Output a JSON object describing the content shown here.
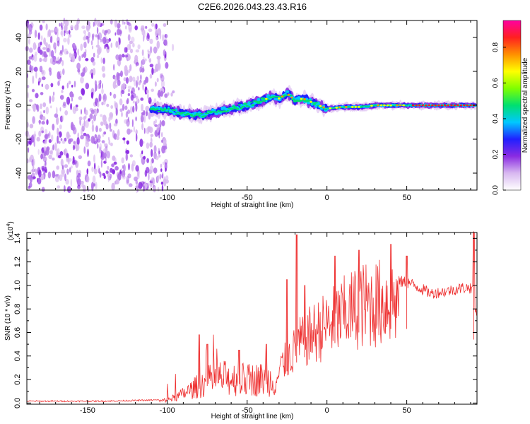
{
  "title": "C2E6.2026.043.23.43.R16",
  "chart_data": [
    {
      "type": "heatmap",
      "name": "spectrogram",
      "xlabel": "Height of straight line (km)",
      "ylabel": "Frequency (Hz)",
      "xlim": [
        -188,
        94
      ],
      "ylim": [
        -50,
        50
      ],
      "xticks": [
        -150,
        -100,
        -50,
        0,
        50
      ],
      "xtick_labels": [
        "-150",
        "-100",
        "-50",
        "0",
        "50"
      ],
      "yticks": [
        -40,
        -20,
        0,
        20,
        40
      ],
      "ytick_labels": [
        "-40",
        "-20",
        "0",
        "20",
        "40"
      ],
      "noise_region": [
        -188,
        -100
      ],
      "ridge": {
        "x": [
          -110,
          -100,
          -90,
          -80,
          -70,
          -60,
          -50,
          -40,
          -35,
          -30,
          -25,
          -20,
          -15,
          -10,
          -5,
          0,
          10,
          20,
          30,
          40,
          50,
          60,
          70,
          80,
          90
        ],
        "freq": [
          -2,
          -3,
          -5,
          -6,
          -4,
          -2,
          0,
          3,
          5,
          4,
          7,
          3,
          4,
          2,
          0,
          -2,
          -1,
          -1,
          0,
          0,
          0,
          0,
          0,
          0,
          0
        ]
      },
      "colorbar": {
        "label": "Normalized spectral amplitude",
        "range": [
          0.0,
          0.95
        ],
        "ticks": [
          0.0,
          0.2,
          0.4,
          0.6,
          0.8
        ],
        "tick_labels": [
          "0.0",
          "0.2",
          "0.4",
          "0.6",
          "0.8"
        ],
        "colors": [
          "#ffffff",
          "#d8b8f0",
          "#8a2be2",
          "#2020ff",
          "#00c8ff",
          "#00e070",
          "#80ff00",
          "#ffff00",
          "#ff9000",
          "#ff2020",
          "#ff00a0"
        ]
      }
    },
    {
      "type": "line",
      "name": "snr",
      "xlabel": "Height of straight line (km)",
      "ylabel": "SNR (10 * v/v)",
      "scale_label": "(x10",
      "scale_exponent": "4",
      "scale_suffix": ")",
      "xlim": [
        -188,
        94
      ],
      "ylim": [
        -0.01,
        1.45
      ],
      "xticks": [
        -150,
        -100,
        -50,
        0,
        50
      ],
      "xtick_labels": [
        "-150",
        "-100",
        "-50",
        "0",
        "50"
      ],
      "yticks": [
        0.0,
        0.2,
        0.4,
        0.6,
        0.8,
        1.0,
        1.2,
        1.4
      ],
      "ytick_labels": [
        "0.0",
        "0.2",
        "0.4",
        "0.6",
        "0.8",
        "1.0",
        "1.2",
        "1.4"
      ],
      "color": "#ee3030",
      "envelope": {
        "x": [
          -188,
          -140,
          -105,
          -95,
          -85,
          -78,
          -70,
          -60,
          -50,
          -40,
          -32,
          -28,
          -22,
          -18,
          -10,
          0,
          10,
          20,
          30,
          40,
          50,
          58,
          65,
          75,
          85,
          91,
          93
        ],
        "y": [
          0.01,
          0.01,
          0.02,
          0.06,
          0.15,
          0.22,
          0.28,
          0.28,
          0.26,
          0.27,
          0.25,
          0.4,
          0.5,
          0.6,
          0.7,
          0.8,
          0.9,
          1.0,
          1.02,
          1.05,
          1.05,
          1.0,
          0.95,
          0.97,
          1.0,
          1.0,
          0.8
        ]
      },
      "peaks": [
        {
          "x": -80,
          "y": 0.58
        },
        {
          "x": -75,
          "y": 0.5
        },
        {
          "x": -55,
          "y": 0.45
        },
        {
          "x": -38,
          "y": 0.5
        },
        {
          "x": -25,
          "y": 1.05
        },
        {
          "x": -19,
          "y": 1.43
        },
        {
          "x": -14,
          "y": 1.0
        },
        {
          "x": 5,
          "y": 1.25
        },
        {
          "x": 20,
          "y": 1.3
        },
        {
          "x": 40,
          "y": 1.35
        },
        {
          "x": 50,
          "y": 1.25
        },
        {
          "x": 92,
          "y": 1.46
        }
      ]
    }
  ]
}
